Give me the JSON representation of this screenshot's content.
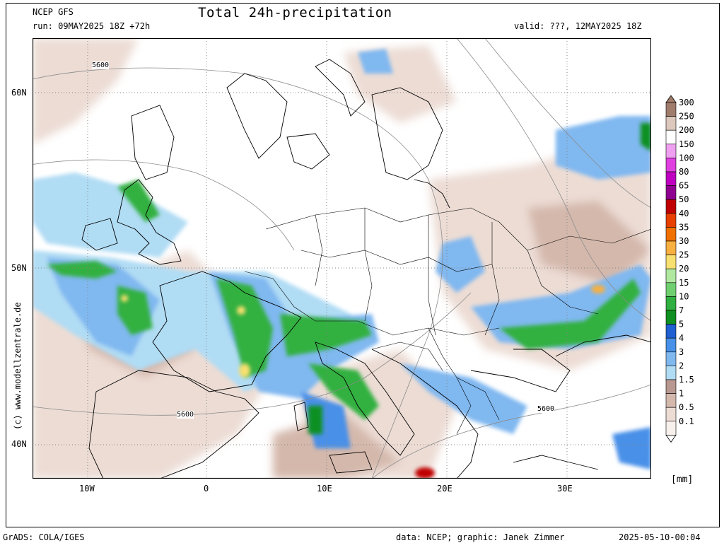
{
  "header": {
    "model": "NCEP GFS",
    "run": "run: 09MAY2025 18Z +72h",
    "title": "Total 24h-precipitation",
    "valid": "valid: ???, 12MAY2025 18Z"
  },
  "side_credit": "(c) www.modellzentrale.de",
  "map": {
    "lat_labels": [
      "60N",
      "50N",
      "40N"
    ],
    "lon_labels": [
      "10W",
      "0",
      "10E",
      "20E",
      "30E"
    ],
    "contour_labels": [
      "5600",
      "5600",
      "5600"
    ]
  },
  "legend": {
    "unit": "[mm]",
    "levels": [
      {
        "label": "300",
        "color": "#a07c6c"
      },
      {
        "label": "250",
        "color": "#dcc8bc"
      },
      {
        "label": "200",
        "color": "#ffffff"
      },
      {
        "label": "150",
        "color": "#f0a0f0"
      },
      {
        "label": "100",
        "color": "#e040e0"
      },
      {
        "label": "80",
        "color": "#c000c0"
      },
      {
        "label": "65",
        "color": "#900090"
      },
      {
        "label": "50",
        "color": "#c00000"
      },
      {
        "label": "40",
        "color": "#e84000"
      },
      {
        "label": "35",
        "color": "#f07000"
      },
      {
        "label": "30",
        "color": "#f8b040"
      },
      {
        "label": "25",
        "color": "#f8e070"
      },
      {
        "label": "20",
        "color": "#b0e8a0"
      },
      {
        "label": "15",
        "color": "#70d070"
      },
      {
        "label": "10",
        "color": "#30b040"
      },
      {
        "label": "7",
        "color": "#109020"
      },
      {
        "label": "5",
        "color": "#2060d0"
      },
      {
        "label": "4",
        "color": "#4890e8"
      },
      {
        "label": "3",
        "color": "#80b8f0"
      },
      {
        "label": "2",
        "color": "#b0dcf4"
      },
      {
        "label": "1.5",
        "color": "#b89890"
      },
      {
        "label": "1",
        "color": "#d4b8ac"
      },
      {
        "label": "0.5",
        "color": "#ecdcd4"
      },
      {
        "label": "0.1",
        "color": "#f8f0ec"
      }
    ]
  },
  "footer": {
    "left": "GrADS: COLA/IGES",
    "credit": "data: NCEP; graphic: Janek Zimmer",
    "timestamp": "2025-05-10-00:04"
  }
}
